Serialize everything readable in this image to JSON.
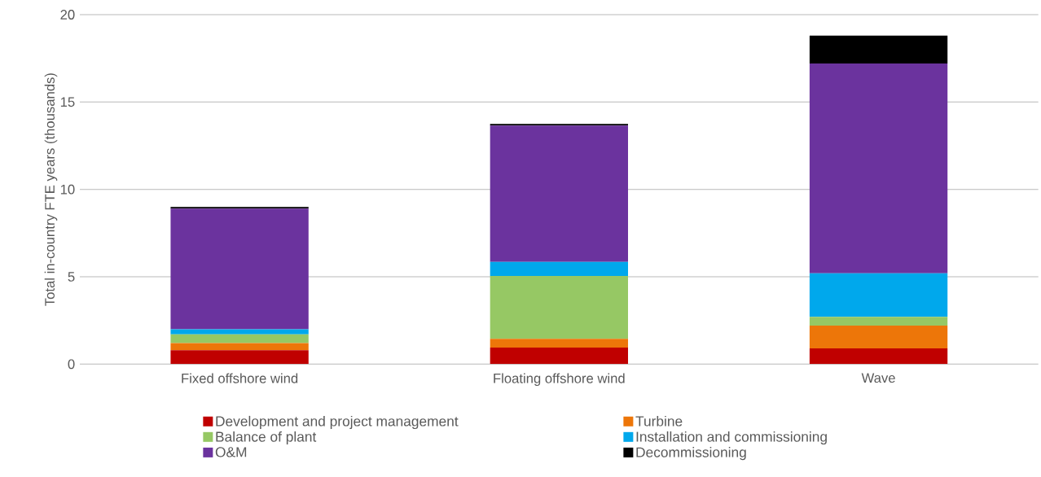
{
  "chart_data": {
    "type": "bar",
    "stacked": true,
    "ylabel": "Total in-country FTE years (thousands)",
    "categories": [
      "Fixed offshore wind",
      "Floating offshore wind",
      "Wave"
    ],
    "series": [
      {
        "name": "Development and project management",
        "color": "#c00000",
        "values": [
          0.8,
          0.95,
          0.9
        ]
      },
      {
        "name": "Turbine",
        "color": "#ed7609",
        "values": [
          0.4,
          0.5,
          1.3
        ]
      },
      {
        "name": "Balance of plant",
        "color": "#96c864",
        "values": [
          0.5,
          3.6,
          0.5
        ]
      },
      {
        "name": "Installation and commissioning",
        "color": "#00a8ec",
        "values": [
          0.3,
          0.8,
          2.5
        ]
      },
      {
        "name": "O&M",
        "color": "#6b339e",
        "values": [
          6.9,
          7.8,
          12.0
        ]
      },
      {
        "name": "Decommissioning",
        "color": "#000000",
        "values": [
          0.1,
          0.1,
          1.6
        ]
      }
    ],
    "ylim": [
      0,
      20
    ],
    "yticks": [
      0,
      5,
      10,
      15,
      20
    ],
    "grid": "y",
    "legend": "bottom"
  }
}
